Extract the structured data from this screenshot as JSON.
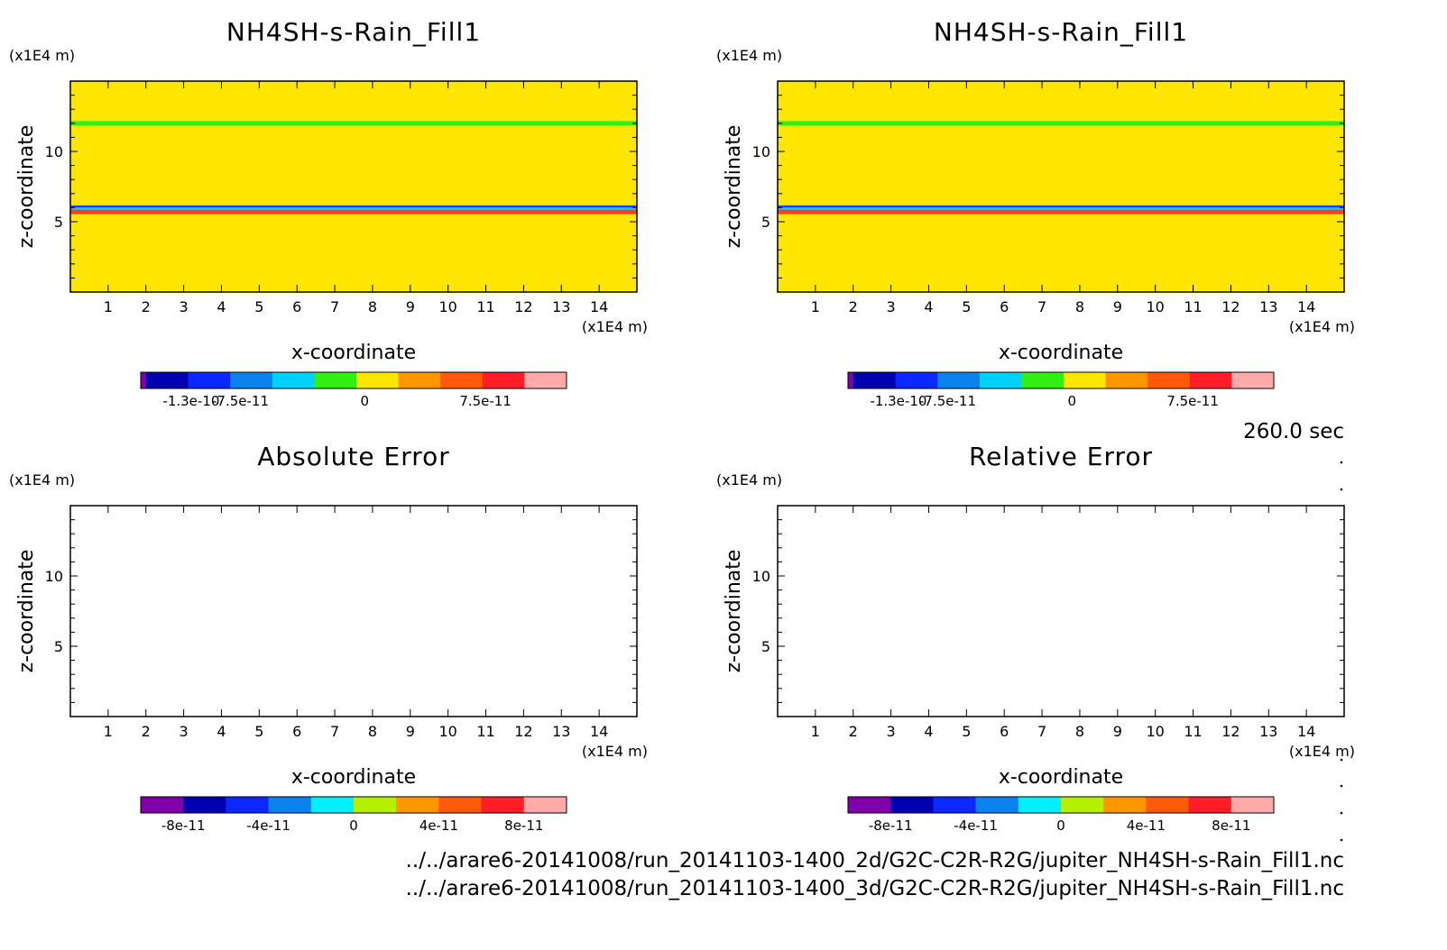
{
  "time_label": "260.0 sec",
  "files": [
    "../../arare6-20141008/run_20141103-1400_2d/G2C-C2R-R2G/jupiter_NH4SH-s-Rain_Fill1.nc",
    "../../arare6-20141008/run_20141103-1400_3d/G2C-C2R-R2G/jupiter_NH4SH-s-Rain_Fill1.nc"
  ],
  "colors": {
    "field_background": "#ffe600",
    "band_green": "#33ee11",
    "band_blue": "#1e3cff",
    "band_lightblue": "#00d2ff",
    "band_red": "#ff3c1e"
  },
  "chart_data": [
    {
      "type": "heatmap",
      "title": "NH4SH-s-Rain_Fill1",
      "xlabel": "x-coordinate",
      "ylabel": "z-coordinate",
      "x_unit": "(x1E4 m)",
      "y_unit": "(x1E4 m)",
      "xlim": [
        0,
        15
      ],
      "ylim": [
        0,
        15
      ],
      "x_ticks": [
        1,
        2,
        3,
        4,
        5,
        6,
        7,
        8,
        9,
        10,
        11,
        12,
        13,
        14
      ],
      "y_ticks": [
        5,
        10
      ],
      "field_value": 0,
      "bands": [
        {
          "z": 12.0,
          "color": "#33ee11"
        },
        {
          "z": 6.0,
          "color": "#1e3cff"
        },
        {
          "z": 5.85,
          "color": "#00d2ff"
        },
        {
          "z": 5.7,
          "color": "#ff3c1e"
        }
      ],
      "colorbar": {
        "colors": [
          "#8000aa",
          "#0000b0",
          "#0a28ff",
          "#0a82f0",
          "#00d2ff",
          "#32f014",
          "#ffe600",
          "#ff9600",
          "#ff5a0a",
          "#ff1e28",
          "#ffaaaa"
        ],
        "tick_labels": [
          "-1.3e-10",
          "-7.5e-11",
          "0",
          "7.5e-11"
        ]
      }
    },
    {
      "type": "heatmap",
      "title": "NH4SH-s-Rain_Fill1",
      "xlabel": "x-coordinate",
      "ylabel": "z-coordinate",
      "x_unit": "(x1E4 m)",
      "y_unit": "(x1E4 m)",
      "xlim": [
        0,
        15
      ],
      "ylim": [
        0,
        15
      ],
      "x_ticks": [
        1,
        2,
        3,
        4,
        5,
        6,
        7,
        8,
        9,
        10,
        11,
        12,
        13,
        14
      ],
      "y_ticks": [
        5,
        10
      ],
      "field_value": 0,
      "bands": [
        {
          "z": 12.0,
          "color": "#33ee11"
        },
        {
          "z": 6.0,
          "color": "#1e3cff"
        },
        {
          "z": 5.85,
          "color": "#00d2ff"
        },
        {
          "z": 5.7,
          "color": "#ff3c1e"
        }
      ],
      "colorbar": {
        "colors": [
          "#8000aa",
          "#0000b0",
          "#0a28ff",
          "#0a82f0",
          "#00d2ff",
          "#32f014",
          "#ffe600",
          "#ff9600",
          "#ff5a0a",
          "#ff1e28",
          "#ffaaaa"
        ],
        "tick_labels": [
          "-1.3e-10",
          "-7.5e-11",
          "0",
          "7.5e-11"
        ]
      }
    },
    {
      "type": "heatmap",
      "title": "Absolute Error",
      "xlabel": "x-coordinate",
      "ylabel": "z-coordinate",
      "x_unit": "(x1E4 m)",
      "y_unit": "(x1E4 m)",
      "xlim": [
        0,
        15
      ],
      "ylim": [
        0,
        15
      ],
      "x_ticks": [
        1,
        2,
        3,
        4,
        5,
        6,
        7,
        8,
        9,
        10,
        11,
        12,
        13,
        14
      ],
      "y_ticks": [
        5,
        10
      ],
      "field_value": null,
      "bands": [],
      "colorbar": {
        "colors": [
          "#8000aa",
          "#0000b0",
          "#0a28ff",
          "#0a82f0",
          "#00f0ff",
          "#b4f000",
          "#ff9600",
          "#ff5a0a",
          "#ff1e28",
          "#ffaaaa"
        ],
        "tick_labels": [
          "-8e-11",
          "-4e-11",
          "0",
          "4e-11",
          "8e-11"
        ]
      }
    },
    {
      "type": "heatmap",
      "title": "Relative Error",
      "xlabel": "x-coordinate",
      "ylabel": "z-coordinate",
      "x_unit": "(x1E4 m)",
      "y_unit": "(x1E4 m)",
      "xlim": [
        0,
        15
      ],
      "ylim": [
        0,
        15
      ],
      "x_ticks": [
        1,
        2,
        3,
        4,
        5,
        6,
        7,
        8,
        9,
        10,
        11,
        12,
        13,
        14
      ],
      "y_ticks": [
        5,
        10
      ],
      "field_value": null,
      "bands": [],
      "colorbar": {
        "colors": [
          "#8000aa",
          "#0000b0",
          "#0a28ff",
          "#0a82f0",
          "#00f0ff",
          "#b4f000",
          "#ff9600",
          "#ff5a0a",
          "#ff1e28",
          "#ffaaaa"
        ],
        "tick_labels": [
          "-8e-11",
          "-4e-11",
          "0",
          "4e-11",
          "8e-11"
        ]
      }
    }
  ]
}
